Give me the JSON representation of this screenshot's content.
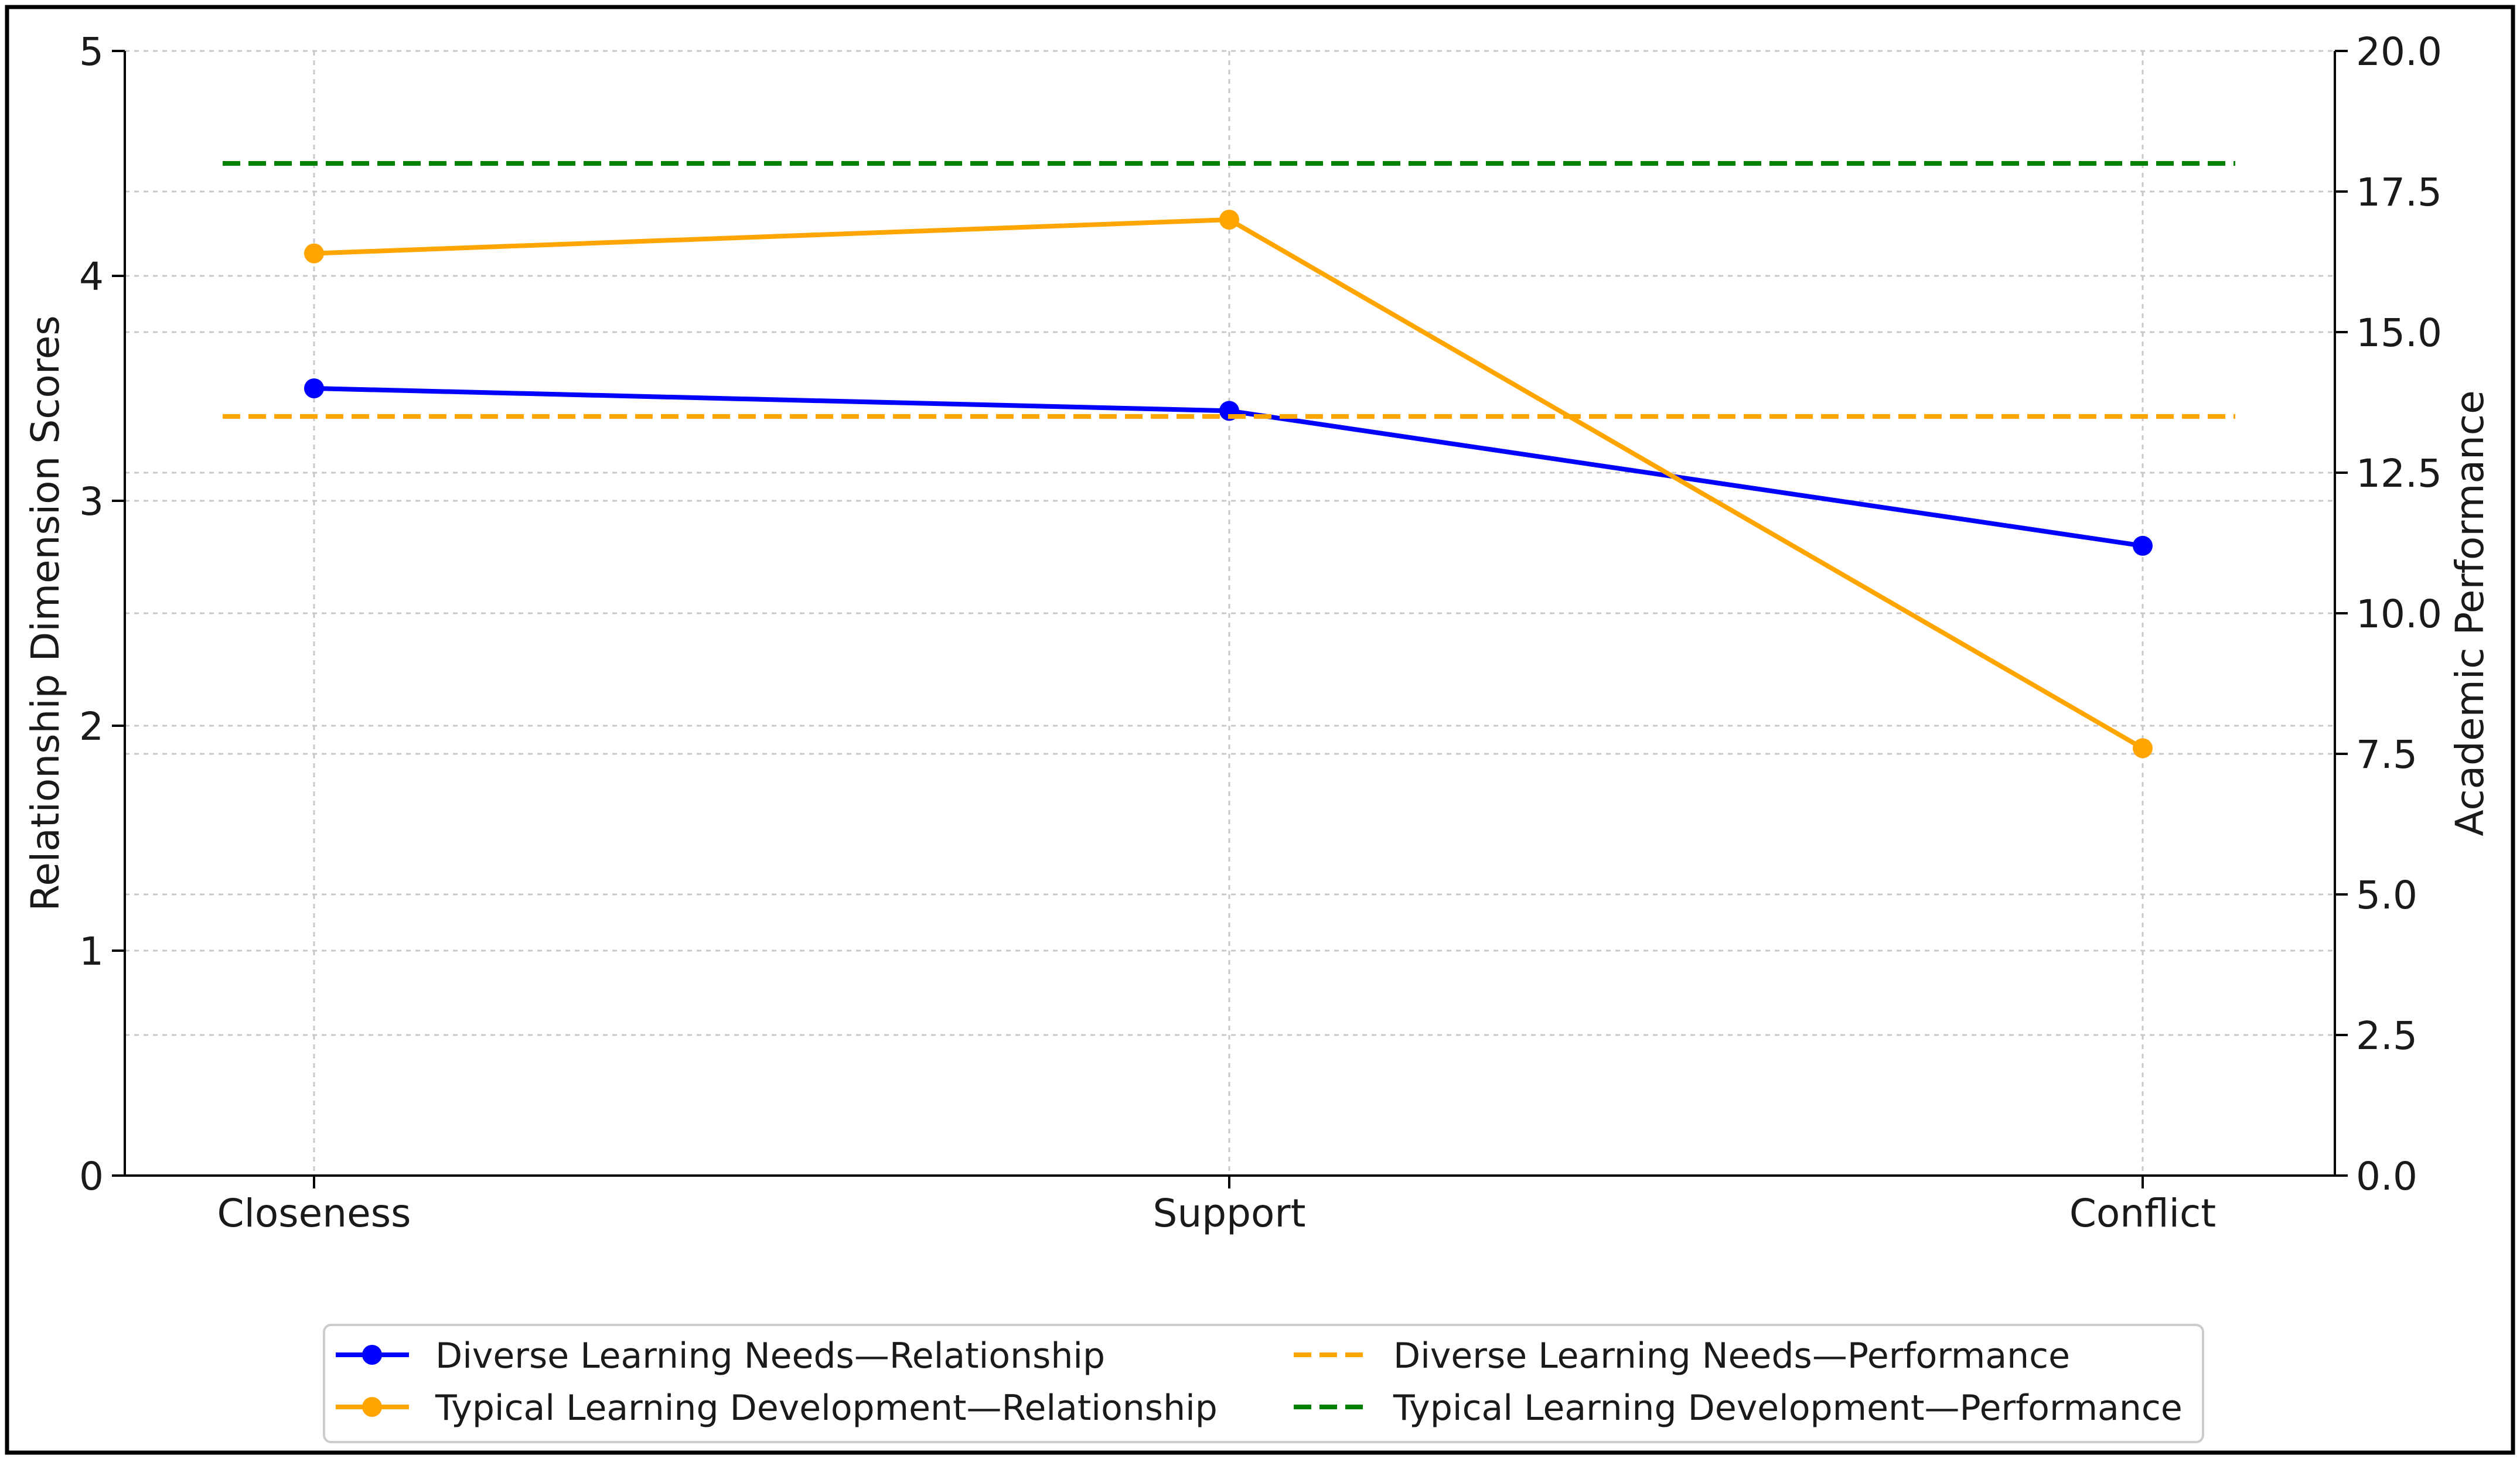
{
  "chart_data": {
    "type": "line",
    "title": "",
    "categories": [
      "Closeness",
      "Support",
      "Conflict"
    ],
    "xlabel": "",
    "ylabel": "Relationship Dimension Scores",
    "y2label": "Academic Performance",
    "ylim": [
      0,
      5
    ],
    "y2lim": [
      0,
      20
    ],
    "yticks": [
      "0",
      "1",
      "2",
      "3",
      "4",
      "5"
    ],
    "y2ticks": [
      "0.0",
      "2.5",
      "5.0",
      "7.5",
      "10.0",
      "12.5",
      "15.0",
      "17.5",
      "20.0"
    ],
    "grid": true,
    "legend_position": "bottom-center",
    "series": [
      {
        "name": "Diverse Learning Needs—Relationship",
        "axis": "left",
        "style": "solid-marker",
        "color": "#0000ff",
        "values": [
          3.5,
          3.4,
          2.8
        ]
      },
      {
        "name": "Typical Learning Development—Relationship",
        "axis": "left",
        "style": "solid-marker",
        "color": "#ffa500",
        "values": [
          4.1,
          4.25,
          1.9
        ]
      },
      {
        "name": "Diverse Learning Needs—Performance",
        "axis": "right",
        "style": "dashed",
        "color": "#ffa500",
        "values": [
          13.5,
          13.5,
          13.5
        ]
      },
      {
        "name": "Typical Learning Development—Performance",
        "axis": "right",
        "style": "dashed",
        "color": "#008000",
        "values": [
          18.0,
          18.0,
          18.0
        ]
      }
    ]
  }
}
